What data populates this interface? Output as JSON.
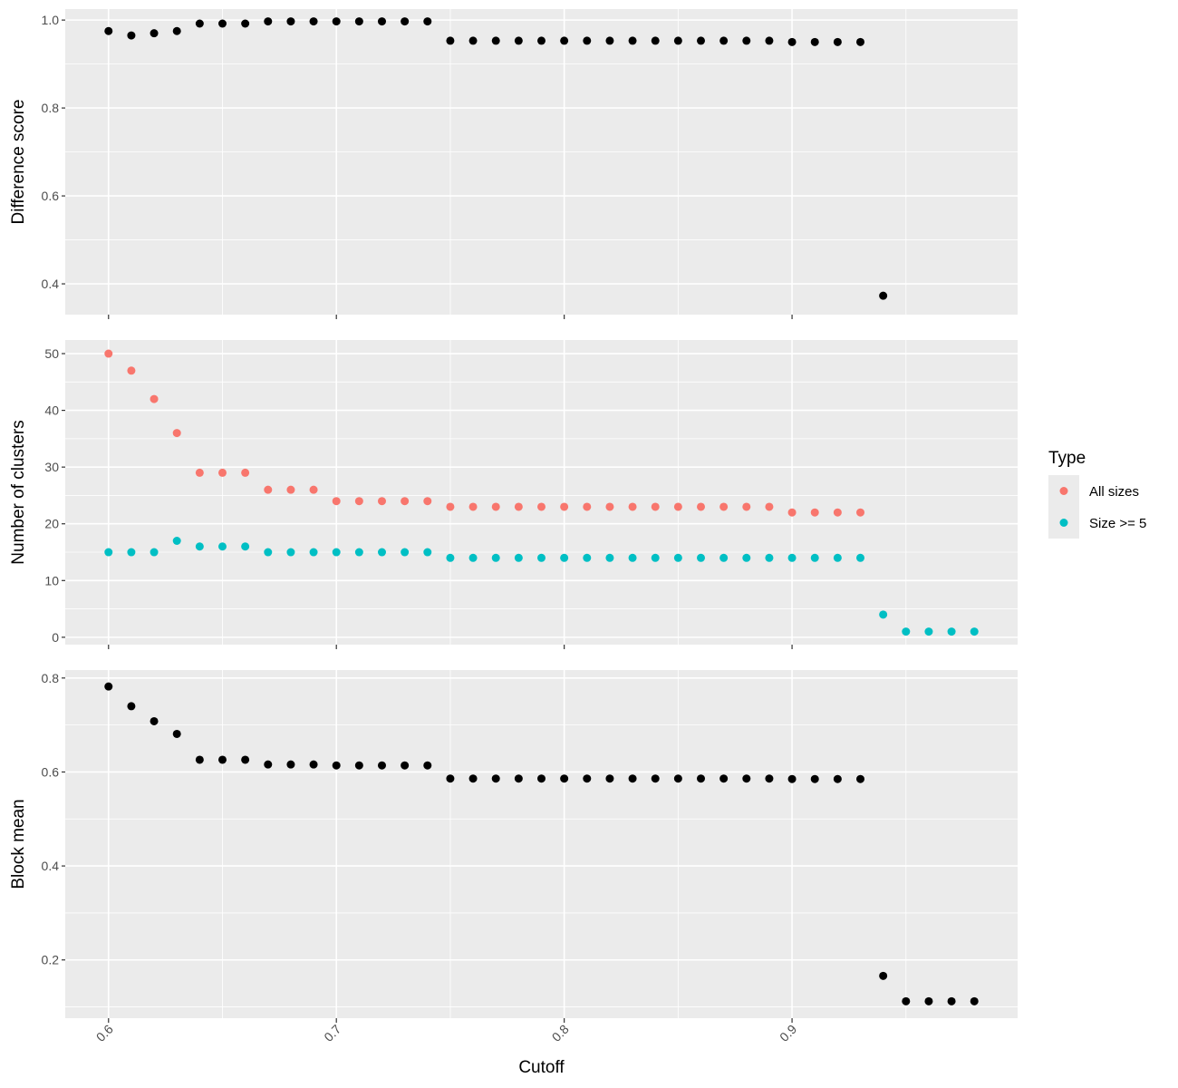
{
  "chart_data": [
    {
      "type": "scatter",
      "ylabel": "Difference score",
      "xlabel": "",
      "ylim": [
        0.33,
        1.025
      ],
      "yticks": [
        0.4,
        0.6,
        0.8,
        1.0
      ],
      "ytick_labels": [
        "0.4",
        "0.6",
        "0.8",
        "1.0"
      ],
      "series": [
        {
          "color": "#000000",
          "x": [
            0.6,
            0.61,
            0.62,
            0.63,
            0.64,
            0.65,
            0.66,
            0.67,
            0.68,
            0.69,
            0.7,
            0.71,
            0.72,
            0.73,
            0.74,
            0.75,
            0.76,
            0.77,
            0.78,
            0.79,
            0.8,
            0.81,
            0.82,
            0.83,
            0.84,
            0.85,
            0.86,
            0.87,
            0.88,
            0.89,
            0.9,
            0.91,
            0.92,
            0.93,
            0.94
          ],
          "y": [
            0.975,
            0.965,
            0.97,
            0.975,
            0.992,
            0.992,
            0.992,
            0.997,
            0.997,
            0.997,
            0.997,
            0.997,
            0.997,
            0.997,
            0.997,
            0.953,
            0.953,
            0.953,
            0.953,
            0.953,
            0.953,
            0.953,
            0.953,
            0.953,
            0.953,
            0.953,
            0.953,
            0.953,
            0.953,
            0.953,
            0.95,
            0.95,
            0.95,
            0.95,
            0.373
          ]
        }
      ]
    },
    {
      "type": "scatter",
      "ylabel": "Number of clusters",
      "xlabel": "",
      "ylim": [
        -1.3,
        52.4
      ],
      "yticks": [
        0,
        10,
        20,
        30,
        40,
        50
      ],
      "ytick_labels": [
        "0",
        "10",
        "20",
        "30",
        "40",
        "50"
      ],
      "legend": {
        "title": "Type",
        "position": "right"
      },
      "series": [
        {
          "name": "All sizes",
          "color": "#F8766D",
          "x": [
            0.6,
            0.61,
            0.62,
            0.63,
            0.64,
            0.65,
            0.66,
            0.67,
            0.68,
            0.69,
            0.7,
            0.71,
            0.72,
            0.73,
            0.74,
            0.75,
            0.76,
            0.77,
            0.78,
            0.79,
            0.8,
            0.81,
            0.82,
            0.83,
            0.84,
            0.85,
            0.86,
            0.87,
            0.88,
            0.89,
            0.9,
            0.91,
            0.92,
            0.93
          ],
          "y": [
            50,
            47,
            42,
            36,
            29,
            29,
            29,
            26,
            26,
            26,
            24,
            24,
            24,
            24,
            24,
            23,
            23,
            23,
            23,
            23,
            23,
            23,
            23,
            23,
            23,
            23,
            23,
            23,
            23,
            23,
            22,
            22,
            22,
            22
          ]
        },
        {
          "name": "Size >= 5",
          "color": "#00BFC4",
          "x": [
            0.6,
            0.61,
            0.62,
            0.63,
            0.64,
            0.65,
            0.66,
            0.67,
            0.68,
            0.69,
            0.7,
            0.71,
            0.72,
            0.73,
            0.74,
            0.75,
            0.76,
            0.77,
            0.78,
            0.79,
            0.8,
            0.81,
            0.82,
            0.83,
            0.84,
            0.85,
            0.86,
            0.87,
            0.88,
            0.89,
            0.9,
            0.91,
            0.92,
            0.93,
            0.94,
            0.95,
            0.96,
            0.97,
            0.98
          ],
          "y": [
            15,
            15,
            15,
            17,
            16,
            16,
            16,
            15,
            15,
            15,
            15,
            15,
            15,
            15,
            15,
            14,
            14,
            14,
            14,
            14,
            14,
            14,
            14,
            14,
            14,
            14,
            14,
            14,
            14,
            14,
            14,
            14,
            14,
            14,
            4,
            1,
            1,
            1,
            1
          ]
        }
      ]
    },
    {
      "type": "scatter",
      "ylabel": "Block mean",
      "xlabel": "Cutoff",
      "ylim": [
        0.076,
        0.817
      ],
      "yticks": [
        0.2,
        0.4,
        0.6,
        0.8
      ],
      "ytick_labels": [
        "0.2",
        "0.4",
        "0.6",
        "0.8"
      ],
      "xticks": [
        0.6,
        0.7,
        0.8,
        0.9
      ],
      "xtick_labels": [
        "0.6",
        "0.7",
        "0.8",
        "0.9"
      ],
      "series": [
        {
          "color": "#000000",
          "x": [
            0.6,
            0.61,
            0.62,
            0.63,
            0.64,
            0.65,
            0.66,
            0.67,
            0.68,
            0.69,
            0.7,
            0.71,
            0.72,
            0.73,
            0.74,
            0.75,
            0.76,
            0.77,
            0.78,
            0.79,
            0.8,
            0.81,
            0.82,
            0.83,
            0.84,
            0.85,
            0.86,
            0.87,
            0.88,
            0.89,
            0.9,
            0.91,
            0.92,
            0.93,
            0.94,
            0.95,
            0.96,
            0.97,
            0.98
          ],
          "y": [
            0.782,
            0.74,
            0.708,
            0.681,
            0.626,
            0.626,
            0.626,
            0.616,
            0.616,
            0.616,
            0.614,
            0.614,
            0.614,
            0.614,
            0.614,
            0.586,
            0.586,
            0.586,
            0.586,
            0.586,
            0.586,
            0.586,
            0.586,
            0.586,
            0.586,
            0.586,
            0.586,
            0.586,
            0.586,
            0.586,
            0.585,
            0.585,
            0.585,
            0.585,
            0.166,
            0.112,
            0.112,
            0.112,
            0.112
          ]
        }
      ]
    }
  ],
  "shared_x": {
    "xlim": [
      0.581,
      0.999
    ],
    "xticks": [
      0.6,
      0.7,
      0.8,
      0.9
    ],
    "xtick_labels": [
      "0.6",
      "0.7",
      "0.8",
      "0.9"
    ],
    "xlabel": "Cutoff"
  },
  "colors": {
    "panel_background": "#EBEBEB",
    "grid": "#FFFFFF",
    "all_sizes": "#F8766D",
    "size_ge_5": "#00BFC4"
  }
}
